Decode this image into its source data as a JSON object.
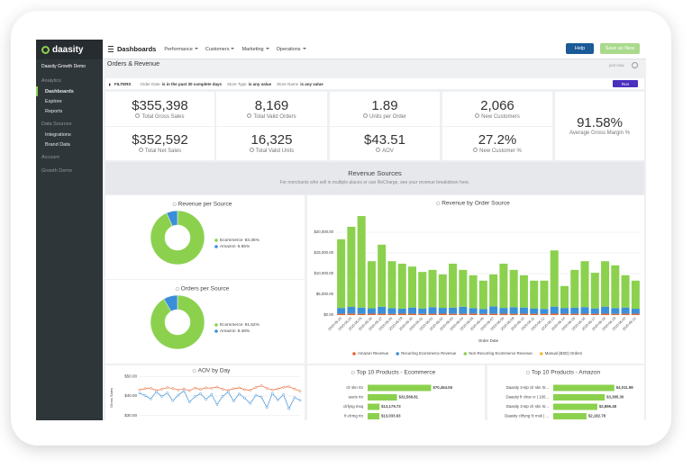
{
  "sidebar": {
    "logo": "daasity",
    "account": "Daasity Growth Demo",
    "groups": [
      {
        "title": "Analytics",
        "items": [
          "Dashboards",
          "Explore",
          "Reports"
        ]
      },
      {
        "title": "Data Sources",
        "items": [
          "Integrations",
          "Brand Data"
        ]
      },
      {
        "title": "Account",
        "items": []
      },
      {
        "title": "Growth Demo",
        "items": []
      }
    ]
  },
  "topbar": {
    "title": "Dashboards",
    "menus": [
      "Performance",
      "Customers",
      "Marketing",
      "Operations"
    ],
    "help": "Help",
    "save": "Save as New"
  },
  "page": {
    "title": "Orders & Revenue",
    "updated": "just now"
  },
  "filters": {
    "label": "FILTERS",
    "items": [
      {
        "field": "Order Date",
        "condition": "is in the past 30 complete days"
      },
      {
        "field": "Store Type",
        "condition": "is any value"
      },
      {
        "field": "Store Name",
        "condition": "is any value"
      }
    ],
    "run": "Run"
  },
  "kpis": [
    {
      "value": "$355,398",
      "label": "Total Gross Sales"
    },
    {
      "value": "8,169",
      "label": "Total Valid Orders"
    },
    {
      "value": "1.89",
      "label": "Units per Order"
    },
    {
      "value": "2,066",
      "label": "New Customers"
    },
    {
      "value": "$352,592",
      "label": "Total Net Sales"
    },
    {
      "value": "16,325",
      "label": "Total Valid Units"
    },
    {
      "value": "$43.51",
      "label": "AOV"
    },
    {
      "value": "27.2%",
      "label": "New Customer %"
    },
    {
      "value": "91.58%",
      "label": "Average Gross Margin %"
    }
  ],
  "section": {
    "title": "Revenue Sources",
    "subtitle": "For merchants who sell in multiple places or use ReCharge, see your revenue breakdown here."
  },
  "chart_data": [
    {
      "type": "pie",
      "title": "Revenue per Source",
      "categories": [
        "Ecommerce",
        "Amazon"
      ],
      "values": [
        93.35,
        6.65
      ],
      "value_labels": [
        "93.35%",
        "6.65%"
      ],
      "colors": [
        "#8bd14e",
        "#3b8fd9"
      ]
    },
    {
      "type": "pie",
      "title": "Orders per Source",
      "categories": [
        "Ecommerce",
        "Amazon"
      ],
      "values": [
        91.52,
        8.48
      ],
      "value_labels": [
        "91.52%",
        "8.48%"
      ],
      "colors": [
        "#8bd14e",
        "#3b8fd9"
      ]
    },
    {
      "type": "bar",
      "stacked": true,
      "title": "Revenue by Order Source",
      "x_label": "Order Date",
      "categories": [
        "2020-05-23",
        "2020-05-24",
        "2020-05-25",
        "2020-05-26",
        "2020-05-27",
        "2020-05-28",
        "2020-05-29",
        "2020-05-30",
        "2020-05-31",
        "2020-06-01",
        "2020-06-02",
        "2020-06-03",
        "2020-06-04",
        "2020-06-05",
        "2020-06-06",
        "2020-06-07",
        "2020-06-08",
        "2020-06-09",
        "2020-06-10",
        "2020-06-11",
        "2020-06-12",
        "2020-06-13",
        "2020-06-14",
        "2020-06-15",
        "2020-06-16",
        "2020-06-17",
        "2020-06-18",
        "2020-06-19",
        "2020-06-20",
        "2020-06-21"
      ],
      "series": [
        {
          "name": "Amazon Revenue",
          "color": "#e8632b",
          "values": [
            300,
            350,
            280,
            320,
            300,
            260,
            340,
            310,
            290,
            300,
            330,
            280,
            300,
            350,
            270,
            300,
            320,
            290,
            310,
            300,
            280,
            330,
            300,
            290,
            310,
            300,
            320,
            280,
            300,
            310
          ]
        },
        {
          "name": "Recurring Ecommerce Revenue",
          "color": "#3b8fd9",
          "values": [
            1400,
            1600,
            1500,
            1300,
            1700,
            1400,
            1200,
            1500,
            1300,
            1600,
            1400,
            1500,
            1700,
            1300,
            1200,
            1800,
            1400,
            1600,
            1500,
            1300,
            1200,
            1700,
            1400,
            1500,
            1600,
            1300,
            1700,
            1400,
            1500,
            1200
          ]
        },
        {
          "name": "Non-Recurring Ecommerce Revenue",
          "color": "#8bd14e",
          "values": [
            16600,
            19350,
            22120,
            11380,
            15000,
            11340,
            10860,
            9890,
            8810,
            9000,
            8070,
            10620,
            8900,
            7950,
            6830,
            7700,
            10680,
            9010,
            7790,
            6700,
            6820,
            13570,
            5300,
            9110,
            11090,
            8600,
            10980,
            10320,
            7800,
            6790
          ]
        },
        {
          "name": "Manual (BSD) Orders",
          "color": "#f5b731",
          "values": [
            0,
            0,
            0,
            0,
            0,
            0,
            0,
            0,
            0,
            0,
            0,
            0,
            0,
            0,
            0,
            0,
            0,
            0,
            0,
            0,
            0,
            0,
            0,
            0,
            0,
            0,
            0,
            0,
            0,
            0
          ]
        }
      ],
      "ylim": [
        0,
        25000
      ],
      "yticks": [
        {
          "value": 0,
          "label": "$0.00"
        },
        {
          "value": 5000,
          "label": "$5,000.00"
        },
        {
          "value": 10000,
          "label": "$10,000.00"
        },
        {
          "value": 15000,
          "label": "$15,000.00"
        },
        {
          "value": 20000,
          "label": "$20,000.00"
        }
      ],
      "grid": true
    },
    {
      "type": "line",
      "title": "AOV by Day",
      "y_label": "Gross Sales",
      "series": [
        {
          "color": "#e8632b",
          "values": [
            43.2,
            43.8,
            44.0,
            42.9,
            43.5,
            44.3,
            43.9,
            43.1,
            43.6,
            42.8,
            44.1,
            43.4,
            44.21,
            44.0,
            44.61,
            43.5,
            42.9,
            43.8,
            44.2,
            43.3,
            43.0,
            44.4,
            45.26,
            44.0,
            43.1,
            43.7,
            44.5,
            44.8,
            43.6,
            42.5
          ]
        },
        {
          "color": "#3b8fd9",
          "values": [
            41.4,
            40.2,
            38.5,
            42.1,
            39.8,
            41.54,
            37.6,
            40.5,
            42.68,
            36.9,
            39.7,
            41.2,
            38.3,
            40.8,
            35.6,
            39.9,
            42.0,
            37.4,
            41.1,
            38.9,
            36.2,
            40.4,
            39.5,
            34.1,
            41.3,
            38.0,
            40.7,
            33.5,
            39.2,
            37.8
          ]
        }
      ],
      "ylim": [
        28,
        52
      ],
      "yticks": [
        {
          "value": 30,
          "label": "$30.00"
        },
        {
          "value": 40,
          "label": "$40.00"
        },
        {
          "value": 50,
          "label": "$50.00"
        }
      ],
      "grid": true
    },
    {
      "type": "hbar",
      "title": "Top 10 Products - Ecommerce",
      "categories": [
        "clr skn rtn",
        "seets rtn",
        "clrfyng msq",
        "fr-clrmg rtn"
      ],
      "values": [
        70454.06,
        32569.81,
        13179.73,
        13033.63
      ],
      "value_labels": [
        "$70,454.06",
        "$32,569.81",
        "$13,179.73",
        "$13,033.63"
      ],
      "xlim": [
        0,
        80000
      ],
      "color": "#8bd14e"
    },
    {
      "type": "hbar",
      "title": "Top 10 Products - Amazon",
      "categories": [
        "Daasity 3-stp clr skn rtr...",
        "Daasity fr clnsr cr | 100...",
        "Daasity 3-stp clr skn rtr...",
        "Daasity clrfyng fc msk | ..."
      ],
      "values": [
        4011.98,
        3385.3,
        2896.48,
        2182.78
      ],
      "value_labels": [
        "$4,011.98",
        "$3,385.30",
        "$2,896.48",
        "$2,182.78"
      ],
      "xlim": [
        0,
        4500
      ],
      "color": "#8bd14e"
    }
  ]
}
